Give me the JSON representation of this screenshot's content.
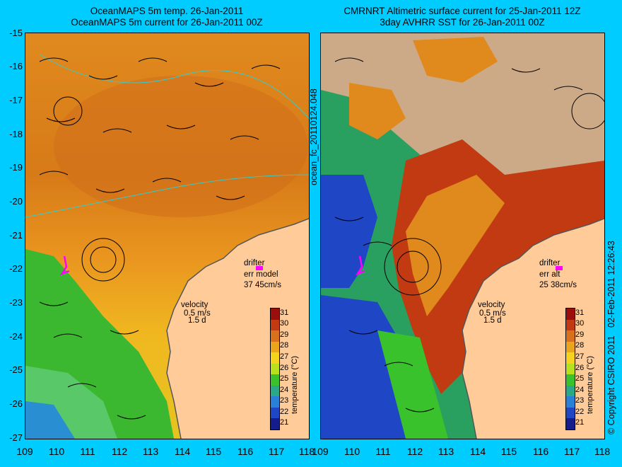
{
  "left_panel": {
    "title_line1": "OceanMAPS 5m temp. 26-Jan-2011",
    "title_line2": "OceanMAPS 5m current for 26-Jan-2011 00Z",
    "drifter_label": "drifter",
    "err_label": "err model",
    "err_values": "37 45cm/s",
    "velocity_label": "velocity",
    "velocity_scale": "0.5 m/s",
    "velocity_time": "1.5 d"
  },
  "right_panel": {
    "title_line1": "CMRNRT Altimetric surface current for 25-Jan-2011 12Z",
    "title_line2": "3day AVHRR SST for 26-Jan-2011 00Z",
    "drifter_label": "drifter",
    "err_label": "err alt",
    "err_values": "25 38cm/s",
    "velocity_label": "velocity",
    "velocity_scale": "0.5 m/s",
    "velocity_time": "1.5 d"
  },
  "side_labels": {
    "forecast_id": "ocean_fc_20110124.048",
    "copyright": "© Copyright CSIRO 2011",
    "date_stamp": "02-Feb-2011 12:26:43"
  },
  "latitudes": [
    "-15",
    "-16",
    "-17",
    "-18",
    "-19",
    "-20",
    "-21",
    "-22",
    "-23",
    "-24",
    "-25",
    "-26",
    "-27"
  ],
  "longitudes": [
    "109",
    "110",
    "111",
    "112",
    "113",
    "114",
    "115",
    "116",
    "117",
    "118"
  ],
  "colorbar": {
    "label": "temperature (°C)",
    "ticks": [
      "31",
      "30",
      "29",
      "28",
      "27",
      "26",
      "25",
      "24",
      "23",
      "22",
      "21"
    ],
    "colors": [
      "#9a0e0e",
      "#c23a12",
      "#d9701c",
      "#eba41e",
      "#f5d21e",
      "#b8e01e",
      "#39c22c",
      "#2aa888",
      "#2a7fd6",
      "#1f46c4",
      "#151c8c"
    ]
  },
  "colors": {
    "background": "#00ccff",
    "land": "#ffcc99",
    "cloud": "#ccaa88",
    "drifter_track": "#ff00ff",
    "coastline_contour": "#33cccc"
  }
}
